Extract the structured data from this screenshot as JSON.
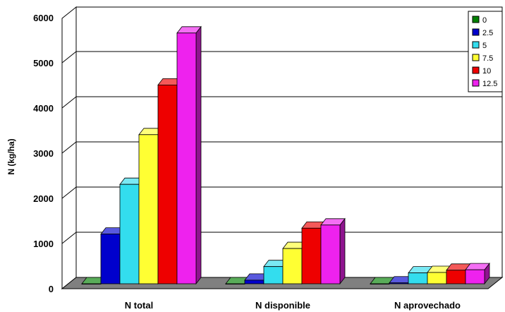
{
  "chart_data": {
    "type": "bar",
    "title": "",
    "xlabel": "",
    "ylabel": "N (kg/ha)",
    "ylim": [
      0,
      6000
    ],
    "yticks": [
      0,
      1000,
      2000,
      3000,
      4000,
      5000,
      6000
    ],
    "categories": [
      "N total",
      "N disponible",
      "N aprovechado"
    ],
    "series": [
      {
        "name": "0",
        "color": "#008000",
        "values": [
          0,
          0,
          0
        ]
      },
      {
        "name": "2.5",
        "color": "#0000cc",
        "values": [
          1100,
          80,
          20
        ]
      },
      {
        "name": "5",
        "color": "#33ddee",
        "values": [
          2200,
          380,
          240
        ]
      },
      {
        "name": "7.5",
        "color": "#ffff33",
        "values": [
          3300,
          780,
          250
        ]
      },
      {
        "name": "10",
        "color": "#ee0000",
        "values": [
          4400,
          1230,
          300
        ]
      },
      {
        "name": "12.5",
        "color": "#ee22ee",
        "values": [
          5550,
          1300,
          310
        ]
      }
    ],
    "legend_position": "top-right",
    "grid": true
  }
}
